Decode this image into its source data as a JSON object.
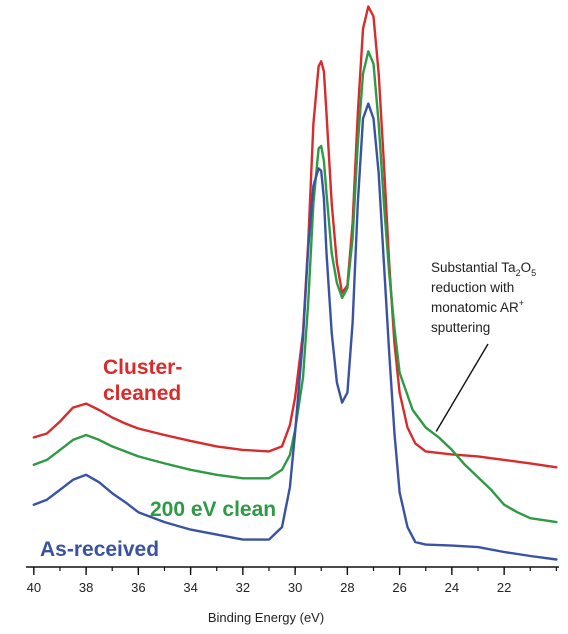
{
  "chart_data": {
    "type": "line",
    "xlabel": "Binding Energy (eV)",
    "ylabel": "",
    "xlim": [
      40.3,
      19.9
    ],
    "ylim": [
      0,
      1.12
    ],
    "x_reversed": true,
    "xticks": [
      40,
      38,
      36,
      34,
      32,
      30,
      28,
      26,
      24,
      22
    ],
    "grid": false,
    "colors": {
      "cluster": "#d92b2b",
      "clean200": "#2e9a44",
      "asreceived": "#3a52a4",
      "axis": "#111111"
    },
    "series": [
      {
        "name": "Cluster-cleaned",
        "points": [
          [
            40.0,
            0.25
          ],
          [
            39.5,
            0.258
          ],
          [
            39.0,
            0.282
          ],
          [
            38.5,
            0.31
          ],
          [
            38.0,
            0.318
          ],
          [
            37.5,
            0.305
          ],
          [
            37.0,
            0.29
          ],
          [
            36.5,
            0.278
          ],
          [
            36.0,
            0.268
          ],
          [
            35.0,
            0.255
          ],
          [
            34.0,
            0.243
          ],
          [
            33.0,
            0.232
          ],
          [
            32.0,
            0.225
          ],
          [
            31.0,
            0.222
          ],
          [
            30.5,
            0.232
          ],
          [
            30.2,
            0.275
          ],
          [
            30.0,
            0.33
          ],
          [
            29.7,
            0.46
          ],
          [
            29.5,
            0.64
          ],
          [
            29.3,
            0.88
          ],
          [
            29.1,
            0.995
          ],
          [
            29.0,
            1.005
          ],
          [
            28.9,
            0.985
          ],
          [
            28.8,
            0.9
          ],
          [
            28.6,
            0.72
          ],
          [
            28.4,
            0.6
          ],
          [
            28.2,
            0.54
          ],
          [
            28.0,
            0.555
          ],
          [
            27.8,
            0.68
          ],
          [
            27.6,
            0.9
          ],
          [
            27.4,
            1.07
          ],
          [
            27.2,
            1.115
          ],
          [
            27.0,
            1.095
          ],
          [
            26.8,
            0.98
          ],
          [
            26.6,
            0.8
          ],
          [
            26.4,
            0.6
          ],
          [
            26.2,
            0.44
          ],
          [
            26.0,
            0.34
          ],
          [
            25.7,
            0.27
          ],
          [
            25.4,
            0.238
          ],
          [
            25.0,
            0.222
          ],
          [
            24.0,
            0.216
          ],
          [
            23.0,
            0.212
          ],
          [
            22.0,
            0.205
          ],
          [
            21.0,
            0.198
          ],
          [
            20.0,
            0.19
          ]
        ]
      },
      {
        "name": "200 eV clean",
        "points": [
          [
            40.0,
            0.195
          ],
          [
            39.5,
            0.205
          ],
          [
            39.0,
            0.225
          ],
          [
            38.5,
            0.245
          ],
          [
            38.0,
            0.255
          ],
          [
            37.5,
            0.245
          ],
          [
            37.0,
            0.232
          ],
          [
            36.5,
            0.222
          ],
          [
            36.0,
            0.212
          ],
          [
            35.0,
            0.198
          ],
          [
            34.0,
            0.185
          ],
          [
            33.0,
            0.175
          ],
          [
            32.0,
            0.168
          ],
          [
            31.0,
            0.168
          ],
          [
            30.5,
            0.185
          ],
          [
            30.2,
            0.215
          ],
          [
            30.0,
            0.265
          ],
          [
            29.7,
            0.37
          ],
          [
            29.5,
            0.52
          ],
          [
            29.3,
            0.72
          ],
          [
            29.1,
            0.83
          ],
          [
            29.0,
            0.835
          ],
          [
            28.9,
            0.805
          ],
          [
            28.8,
            0.74
          ],
          [
            28.6,
            0.62
          ],
          [
            28.4,
            0.56
          ],
          [
            28.2,
            0.53
          ],
          [
            28.0,
            0.55
          ],
          [
            27.8,
            0.65
          ],
          [
            27.6,
            0.84
          ],
          [
            27.4,
            0.98
          ],
          [
            27.2,
            1.025
          ],
          [
            27.0,
            1.0
          ],
          [
            26.8,
            0.88
          ],
          [
            26.6,
            0.72
          ],
          [
            26.4,
            0.58
          ],
          [
            26.2,
            0.47
          ],
          [
            26.0,
            0.38
          ],
          [
            25.5,
            0.305
          ],
          [
            25.0,
            0.27
          ],
          [
            24.5,
            0.25
          ],
          [
            24.0,
            0.225
          ],
          [
            23.5,
            0.195
          ],
          [
            23.0,
            0.17
          ],
          [
            22.5,
            0.145
          ],
          [
            22.0,
            0.115
          ],
          [
            21.5,
            0.1
          ],
          [
            21.0,
            0.088
          ],
          [
            20.0,
            0.08
          ]
        ]
      },
      {
        "name": "As-received",
        "points": [
          [
            40.0,
            0.115
          ],
          [
            39.5,
            0.125
          ],
          [
            39.0,
            0.145
          ],
          [
            38.5,
            0.165
          ],
          [
            38.0,
            0.175
          ],
          [
            37.5,
            0.16
          ],
          [
            37.0,
            0.138
          ],
          [
            36.5,
            0.12
          ],
          [
            36.0,
            0.1
          ],
          [
            35.0,
            0.08
          ],
          [
            34.0,
            0.065
          ],
          [
            33.0,
            0.055
          ],
          [
            32.0,
            0.045
          ],
          [
            31.0,
            0.045
          ],
          [
            30.5,
            0.07
          ],
          [
            30.2,
            0.15
          ],
          [
            30.0,
            0.26
          ],
          [
            29.7,
            0.45
          ],
          [
            29.5,
            0.63
          ],
          [
            29.3,
            0.755
          ],
          [
            29.1,
            0.79
          ],
          [
            29.0,
            0.785
          ],
          [
            28.9,
            0.73
          ],
          [
            28.8,
            0.62
          ],
          [
            28.6,
            0.46
          ],
          [
            28.4,
            0.36
          ],
          [
            28.2,
            0.32
          ],
          [
            28.0,
            0.34
          ],
          [
            27.8,
            0.48
          ],
          [
            27.6,
            0.72
          ],
          [
            27.4,
            0.89
          ],
          [
            27.2,
            0.92
          ],
          [
            27.0,
            0.89
          ],
          [
            26.8,
            0.78
          ],
          [
            26.6,
            0.6
          ],
          [
            26.4,
            0.42
          ],
          [
            26.2,
            0.26
          ],
          [
            26.0,
            0.14
          ],
          [
            25.7,
            0.07
          ],
          [
            25.4,
            0.04
          ],
          [
            25.0,
            0.035
          ],
          [
            24.0,
            0.033
          ],
          [
            23.0,
            0.03
          ],
          [
            22.0,
            0.02
          ],
          [
            21.0,
            0.012
          ],
          [
            20.0,
            0.005
          ]
        ]
      }
    ],
    "series_labels": [
      {
        "series": 0,
        "lines": [
          "Cluster-",
          "cleaned"
        ]
      },
      {
        "series": 1,
        "lines": [
          "200 eV clean"
        ]
      },
      {
        "series": 2,
        "lines": [
          "As-received"
        ]
      }
    ],
    "annotation": {
      "lines": [
        {
          "parts": [
            {
              "t": "Substantial Ta"
            },
            {
              "t": "2",
              "sub": true
            },
            {
              "t": "O"
            },
            {
              "t": "5",
              "sub": true
            }
          ]
        },
        {
          "parts": [
            {
              "t": "reduction with"
            }
          ]
        },
        {
          "parts": [
            {
              "t": "monatomic AR"
            },
            {
              "t": "+",
              "sup": true
            }
          ]
        },
        {
          "parts": [
            {
              "t": "sputtering"
            }
          ]
        }
      ],
      "arrow_target": {
        "x": 24.6,
        "y": 0.262
      }
    }
  }
}
